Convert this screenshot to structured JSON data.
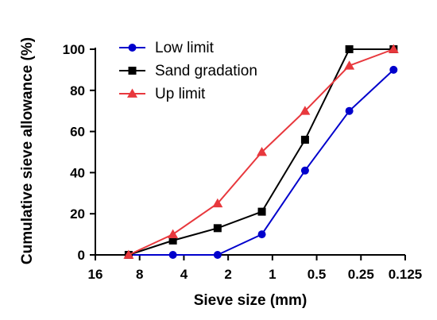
{
  "chart_data": {
    "type": "line",
    "xlabel": "Sieve size (mm)",
    "ylabel": "Cumulative sieve allowance (%)",
    "x_scale": "log2-reversed",
    "xlim": [
      16,
      0.125
    ],
    "ylim": [
      0,
      100
    ],
    "x_ticks": [
      {
        "value": 16,
        "label": "16"
      },
      {
        "value": 8,
        "label": "8"
      },
      {
        "value": 4,
        "label": "4"
      },
      {
        "value": 2,
        "label": "2"
      },
      {
        "value": 1,
        "label": "1"
      },
      {
        "value": 0.5,
        "label": "0.5"
      },
      {
        "value": 0.25,
        "label": "0.25"
      },
      {
        "value": 0.125,
        "label": "0.125"
      }
    ],
    "y_ticks": [
      {
        "value": 0,
        "label": "0"
      },
      {
        "value": 20,
        "label": "20"
      },
      {
        "value": 40,
        "label": "40"
      },
      {
        "value": 60,
        "label": "60"
      },
      {
        "value": 80,
        "label": "80"
      },
      {
        "value": 100,
        "label": "100"
      }
    ],
    "grid": false,
    "legend_position": "top-left",
    "series": [
      {
        "name": "Low limit",
        "color": "#0000cc",
        "marker": "circle",
        "points": [
          [
            9.5,
            0
          ],
          [
            4.75,
            0
          ],
          [
            2.36,
            0
          ],
          [
            1.18,
            10
          ],
          [
            0.6,
            41
          ],
          [
            0.3,
            70
          ],
          [
            0.15,
            90
          ]
        ]
      },
      {
        "name": "Sand gradation",
        "color": "#000000",
        "marker": "square",
        "points": [
          [
            9.5,
            0
          ],
          [
            4.75,
            7
          ],
          [
            2.36,
            13
          ],
          [
            1.18,
            21
          ],
          [
            0.6,
            56
          ],
          [
            0.3,
            100
          ],
          [
            0.15,
            100
          ]
        ]
      },
      {
        "name": "Up limit",
        "color": "#e8383d",
        "marker": "triangle",
        "points": [
          [
            9.5,
            0
          ],
          [
            4.75,
            10
          ],
          [
            2.36,
            25
          ],
          [
            1.18,
            50
          ],
          [
            0.6,
            70
          ],
          [
            0.3,
            92
          ],
          [
            0.15,
            100
          ]
        ]
      }
    ]
  }
}
